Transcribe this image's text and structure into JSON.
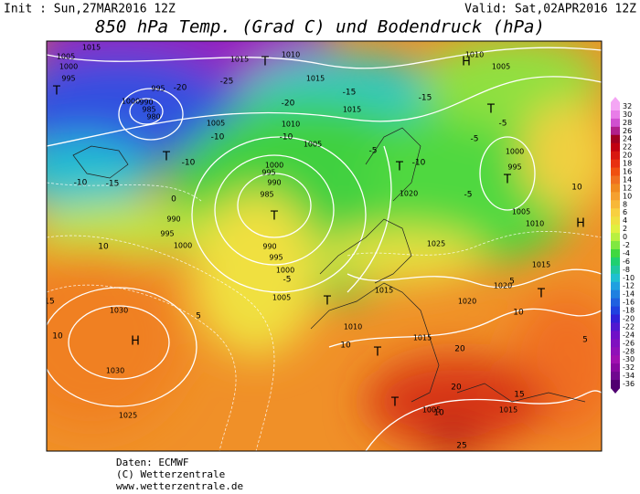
{
  "header": {
    "init": "Init : Sun,27MAR2016 12Z",
    "valid": "Valid: Sat,02APR2016 12Z",
    "title": "850 hPa Temp. (Grad C) und Bodendruck (hPa)"
  },
  "footer": {
    "data": "Daten: ECMWF",
    "copyright": "(C) Wetterzentrale",
    "url": "www.wetterzentrale.de"
  },
  "colorbar": {
    "ticks": [
      32,
      30,
      28,
      26,
      24,
      22,
      20,
      18,
      16,
      14,
      12,
      10,
      8,
      6,
      4,
      2,
      0,
      -2,
      -4,
      -6,
      -8,
      -10,
      -12,
      -14,
      -16,
      -18,
      -20,
      -22,
      -24,
      -26,
      -28,
      -30,
      -32,
      -34,
      -36
    ],
    "colors": [
      "#f4a6f4",
      "#e87de8",
      "#d050d0",
      "#b0208a",
      "#a00020",
      "#c00010",
      "#d81810",
      "#e83010",
      "#f05010",
      "#f07020",
      "#f08a20",
      "#f5a030",
      "#f8b838",
      "#f8d040",
      "#f0e040",
      "#e0f040",
      "#b8f040",
      "#80e840",
      "#40d840",
      "#20d070",
      "#20c8a0",
      "#20c0d0",
      "#20a0e0",
      "#2080e0",
      "#2060e0",
      "#2040e0",
      "#3020d8",
      "#5018d0",
      "#7010c8",
      "#8010c0",
      "#9010b8",
      "#a010b0",
      "#8808a0",
      "#700890",
      "#500070"
    ]
  },
  "map": {
    "pressure_labels": [
      "1015",
      "1015",
      "1010",
      "1005",
      "1000",
      "995",
      "1000",
      "995",
      "990",
      "985",
      "980",
      "1005",
      "1015",
      "1010",
      "1005",
      "1000",
      "995",
      "990",
      "985",
      "990",
      "995",
      "1000",
      "1005",
      "990",
      "995",
      "1000",
      "1030",
      "1030",
      "1025",
      "1010",
      "1015",
      "1015",
      "1020",
      "1025",
      "1020",
      "1020",
      "1015",
      "1015",
      "1005",
      "1010",
      "1005",
      "1000",
      "995",
      "1005",
      "1010",
      "1015"
    ],
    "temperature_labels": [
      "-20",
      "-25",
      "-20",
      "-15",
      "-15",
      "-10",
      "-10",
      "-10",
      "-10",
      "-5",
      "-5",
      "-5",
      "-5",
      "-15",
      "-10",
      "-5",
      "0",
      "5",
      "10",
      "10",
      "15",
      "10",
      "10",
      "20",
      "15",
      "10",
      "5",
      "20",
      "25",
      "10",
      "5"
    ],
    "markers": [
      "H",
      "T",
      "T",
      "T",
      "T",
      "T",
      "T",
      "T",
      "H",
      "T",
      "H",
      "T",
      "T",
      "T"
    ]
  }
}
